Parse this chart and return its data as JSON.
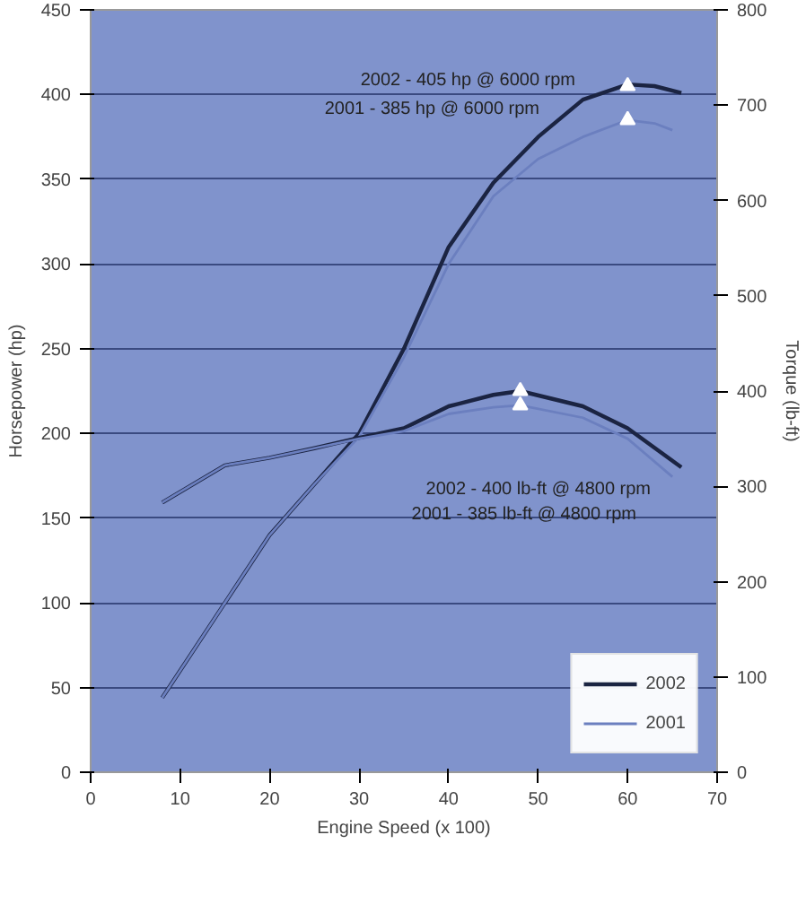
{
  "chart_data": {
    "type": "line",
    "xlabel": "Engine Speed (x 100)",
    "ylabel": "Horsepower (hp)",
    "y2label": "Torque (lb-ft)",
    "xlim": [
      0,
      70
    ],
    "xticks": [
      0,
      10,
      20,
      30,
      40,
      50,
      60,
      70
    ],
    "ylim": [
      0,
      450
    ],
    "yticks": [
      0,
      50,
      100,
      150,
      200,
      250,
      300,
      350,
      400,
      450
    ],
    "y2lim": [
      0,
      800
    ],
    "y2ticks": [
      0,
      100,
      200,
      300,
      400,
      500,
      600,
      700,
      800
    ],
    "grid": "y",
    "legend": "bottom right",
    "line_style": "solid",
    "marker": "none",
    "series": [
      {
        "name": "2002",
        "color": "#1b2442",
        "x": [
          8,
          15,
          20,
          25,
          30,
          35,
          40,
          45,
          50,
          55,
          60,
          63,
          66
        ],
        "values": [
          44,
          100,
          140,
          170,
          200,
          250,
          310,
          348,
          375,
          397,
          406,
          405,
          401
        ]
      },
      {
        "name": "2001",
        "color": "#6b7fbf",
        "x": [
          8,
          15,
          20,
          25,
          30,
          35,
          40,
          45,
          50,
          55,
          60,
          63,
          65
        ],
        "values": [
          44,
          100,
          140,
          170,
          198,
          245,
          300,
          340,
          362,
          375,
          385,
          383,
          379
        ]
      },
      {
        "color": "#1b2442",
        "axis": "y2",
        "x": [
          8,
          15,
          20,
          25,
          30,
          35,
          40,
          45,
          48,
          55,
          60,
          66
        ],
        "values": [
          283,
          322,
          330,
          340,
          351,
          361,
          384,
          396,
          400,
          384,
          361,
          320
        ]
      },
      {
        "color": "#6b7fbf",
        "axis": "y2",
        "x": [
          8,
          15,
          20,
          25,
          30,
          35,
          40,
          45,
          48,
          55,
          60,
          65
        ],
        "values": [
          283,
          322,
          330,
          340,
          350,
          358,
          376,
          383,
          385,
          372,
          350,
          310
        ]
      },
      {
        "type": "scatter",
        "marker": "triangle",
        "color": "#ffffff",
        "x": [
          60,
          60
        ],
        "values": [
          405,
          385
        ]
      },
      {
        "type": "scatter",
        "marker": "triangle",
        "color": "#ffffff",
        "axis": "y2",
        "x": [
          48,
          48
        ],
        "values": [
          400,
          385
        ]
      }
    ],
    "annotations": [
      "2002 - 405 hp @ 6000 rpm",
      "2001 - 385 hp @ 6000 rpm",
      "2002 - 400 lb-ft @ 4800 rpm",
      "2001 - 385 lb-ft @ 4800 rpm"
    ]
  }
}
